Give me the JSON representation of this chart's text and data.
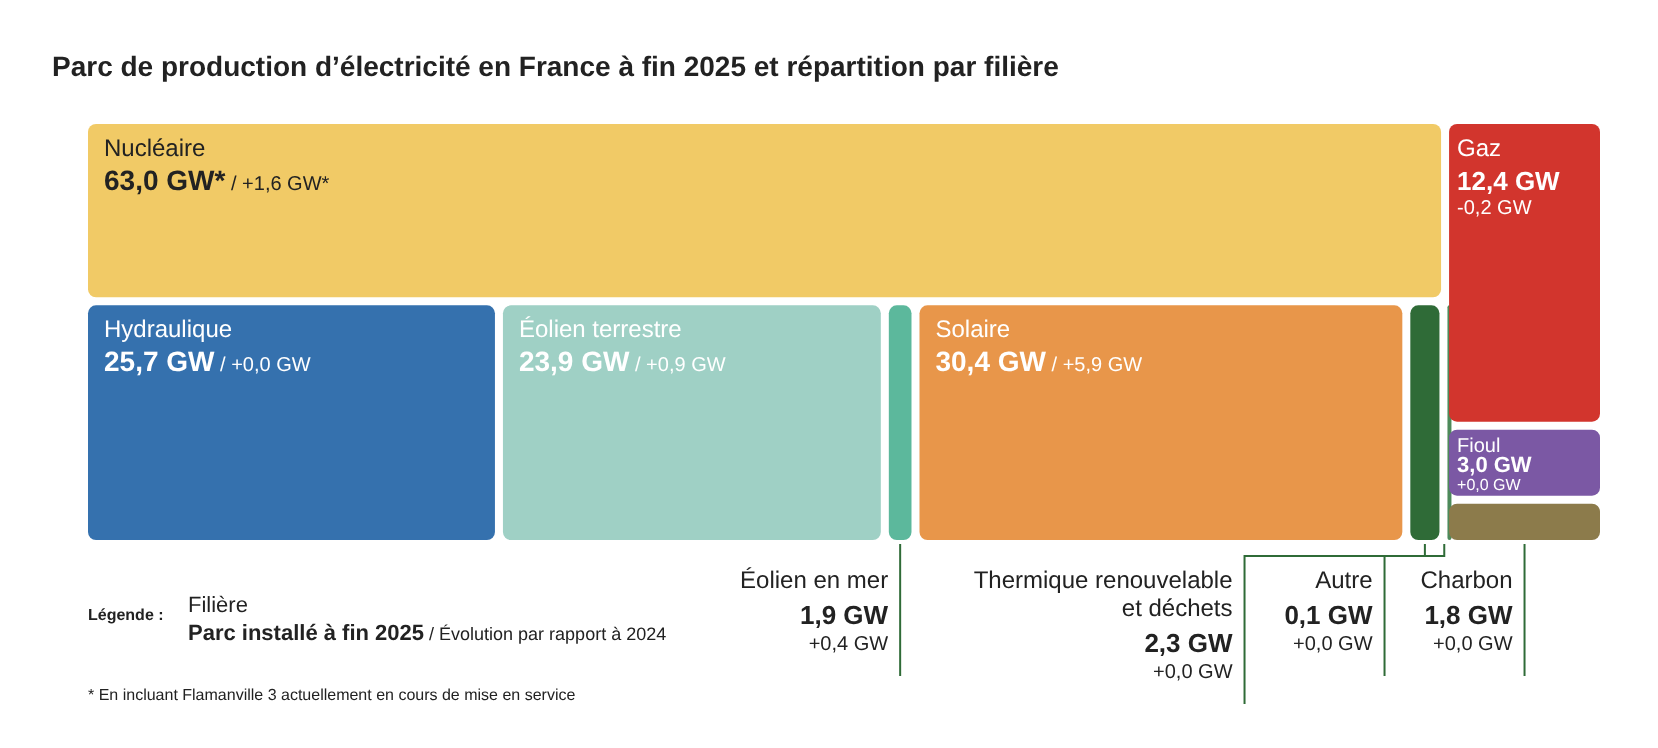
{
  "chart_data": {
    "type": "other",
    "title": "Parc de production d’électricité en France à fin 2025 et répartition par filière",
    "categories": [
      "Nucléaire",
      "Hydraulique",
      "Éolien terrestre",
      "Éolien en mer",
      "Solaire",
      "Thermique renouvelable et déchets",
      "Autre",
      "Gaz",
      "Fioul",
      "Charbon"
    ],
    "series": [
      {
        "colors": [
          "#f1ca66",
          "#3571ae",
          "#9fd0c5",
          "#5cb89c",
          "#e8964a",
          "#2f6b37",
          "#4d8a5a",
          "#d2352d",
          "#7b58a4",
          "#8c7b4b"
        ],
        "values": [
          63.0,
          25.7,
          23.9,
          1.9,
          30.4,
          2.3,
          0.1,
          12.4,
          3.0,
          1.8
        ],
        "value_labels": [
          "63,0 GW*",
          "25,7 GW",
          "23,9 GW",
          "1,9 GW",
          "30,4 GW",
          "2,3 GW",
          "0,1 GW",
          "12,4 GW",
          "3,0 GW",
          "1,8 GW"
        ]
      }
    ],
    "annotations": [
      "Légende :",
      "Filière",
      "Parc installé à fin 2025",
      "/ Évolution par rapport à 2024",
      "* En incluant Flamanville 3 actuellement en cours de mise en service",
      "/ +1,6 GW*",
      "/ +0,0 GW",
      "/ +0,9 GW",
      "+0,4 GW",
      "/ +5,9 GW",
      "+0,0 GW",
      "+0,0 GW",
      "-0,2 GW",
      "+0,0 GW",
      "+0,0 GW"
    ]
  }
}
